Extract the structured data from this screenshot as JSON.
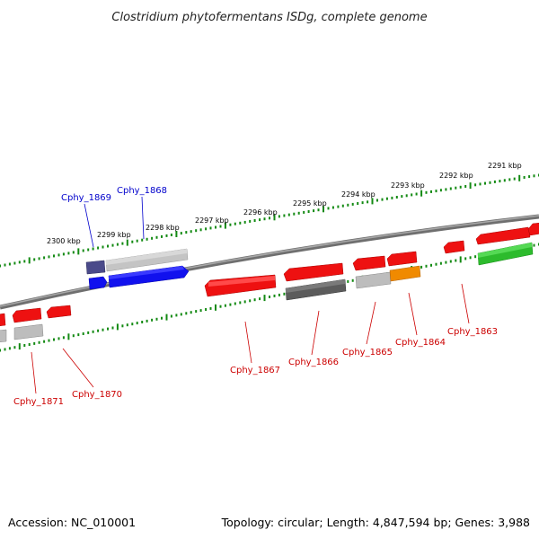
{
  "title": "Clostridium phytofermentans ISDg, complete genome",
  "accession_text": "Accession: NC_010001",
  "topology_text": "Topology: circular; Length: 4,847,594 bp; Genes: 3,988",
  "colors": {
    "backbone": "#777777",
    "ruler": "#138a13",
    "red": "#ee1111",
    "grey": "#bdbdbd",
    "darkgrey": "#555555",
    "blue": "#1111ee",
    "navy": "#4a4a8a",
    "orange": "#f08a00",
    "green": "#2dbb2d",
    "label_blue": "#0000cc",
    "label_red": "#cc0000"
  },
  "scale_labels": [
    "2300 kbp",
    "2299 kbp",
    "2298 kbp",
    "2297 kbp",
    "2296 kbp",
    "2295 kbp",
    "2294 kbp",
    "2293 kbp",
    "2292 kbp",
    "2291 kbp"
  ],
  "gene_labels": [
    {
      "id": "Cphy_1869",
      "color": "label_blue"
    },
    {
      "id": "Cphy_1868",
      "color": "label_blue"
    },
    {
      "id": "Cphy_1871",
      "color": "label_red"
    },
    {
      "id": "Cphy_1870",
      "color": "label_red"
    },
    {
      "id": "Cphy_1867",
      "color": "label_red"
    },
    {
      "id": "Cphy_1866",
      "color": "label_red"
    },
    {
      "id": "Cphy_1865",
      "color": "label_red"
    },
    {
      "id": "Cphy_1864",
      "color": "label_red"
    },
    {
      "id": "Cphy_1863",
      "color": "label_red"
    }
  ]
}
